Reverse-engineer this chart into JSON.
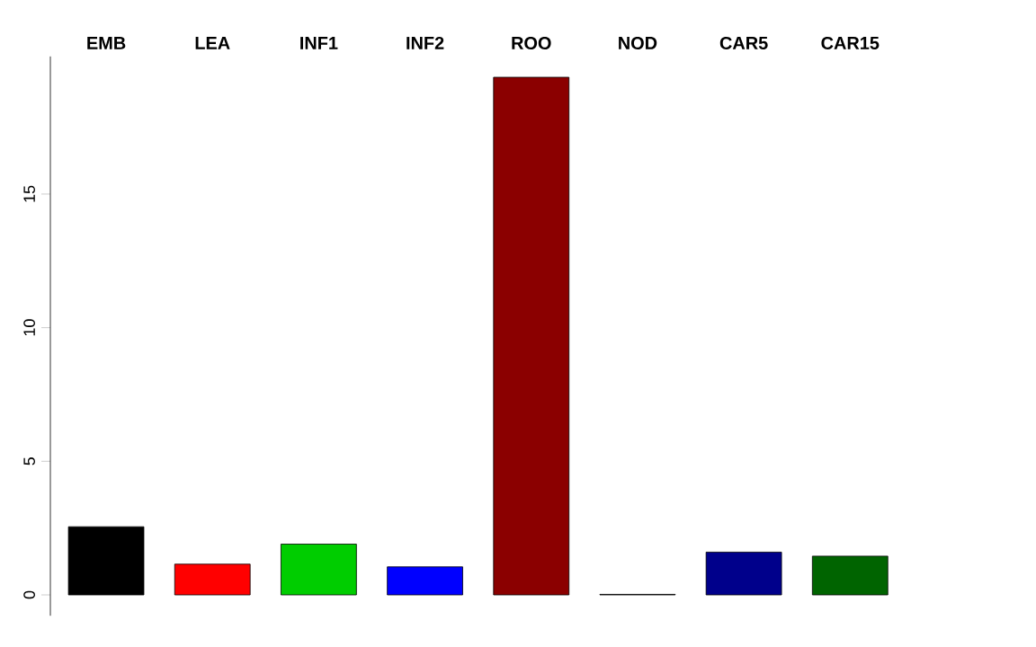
{
  "chart_data": {
    "type": "bar",
    "categories": [
      "EMB",
      "LEA",
      "INF1",
      "INF2",
      "ROO",
      "NOD",
      "CAR5",
      "CAR15"
    ],
    "values": [
      2.55,
      1.15,
      1.9,
      1.05,
      19.37,
      0.02,
      1.6,
      1.45
    ],
    "colors": [
      "#000000",
      "#ff0000",
      "#00cd00",
      "#0000ff",
      "#8b0000",
      "#000000",
      "#00008b",
      "#006400"
    ],
    "ylim": [
      -0.78,
      20.15
    ],
    "yticks": [
      0,
      5,
      10,
      15
    ],
    "grid": false
  }
}
